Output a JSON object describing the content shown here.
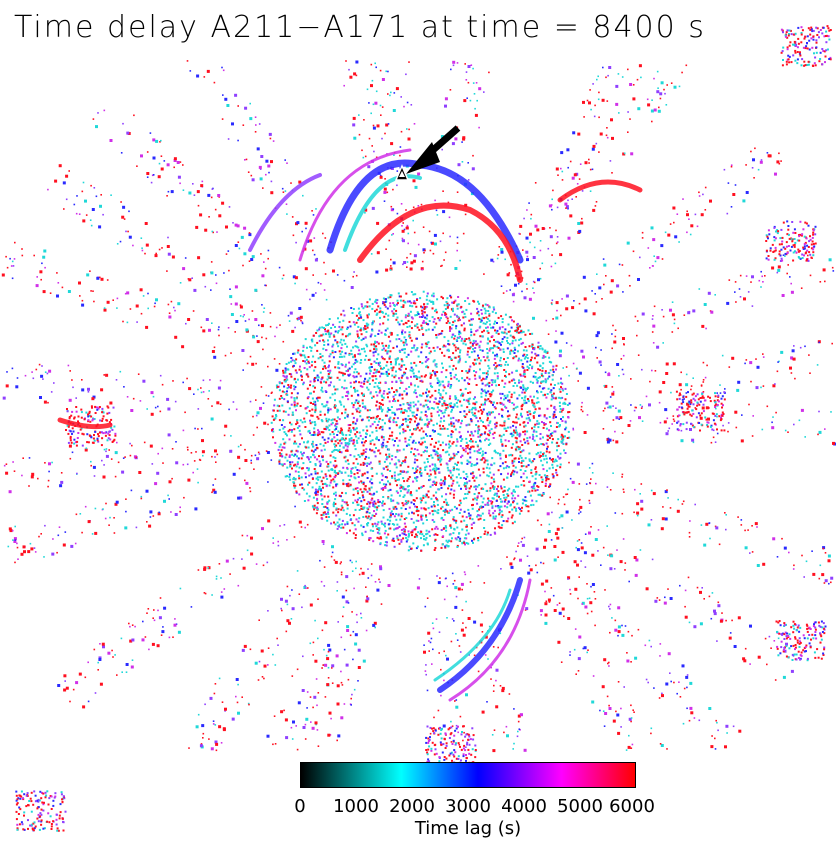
{
  "title": "Time delay A211−A171 at time = 8400 s",
  "colorbar": {
    "ticks": [
      "0",
      "1000",
      "2000",
      "3000",
      "4000",
      "5000",
      "6000"
    ],
    "label": "Time lag (s)",
    "range": [
      0,
      6000
    ],
    "colors": [
      "#000000",
      "#00ffff",
      "#0000ff",
      "#ff00ff",
      "#ff0000"
    ]
  },
  "palette": {
    "red": "#ff1020",
    "magenta": "#d030e8",
    "blue": "#2a2aff",
    "cyan": "#20d8d8",
    "purple": "#9040ff"
  },
  "annotations": {
    "arrow": "arrow-pointing-down-left",
    "marker": "triangle-marker"
  }
}
